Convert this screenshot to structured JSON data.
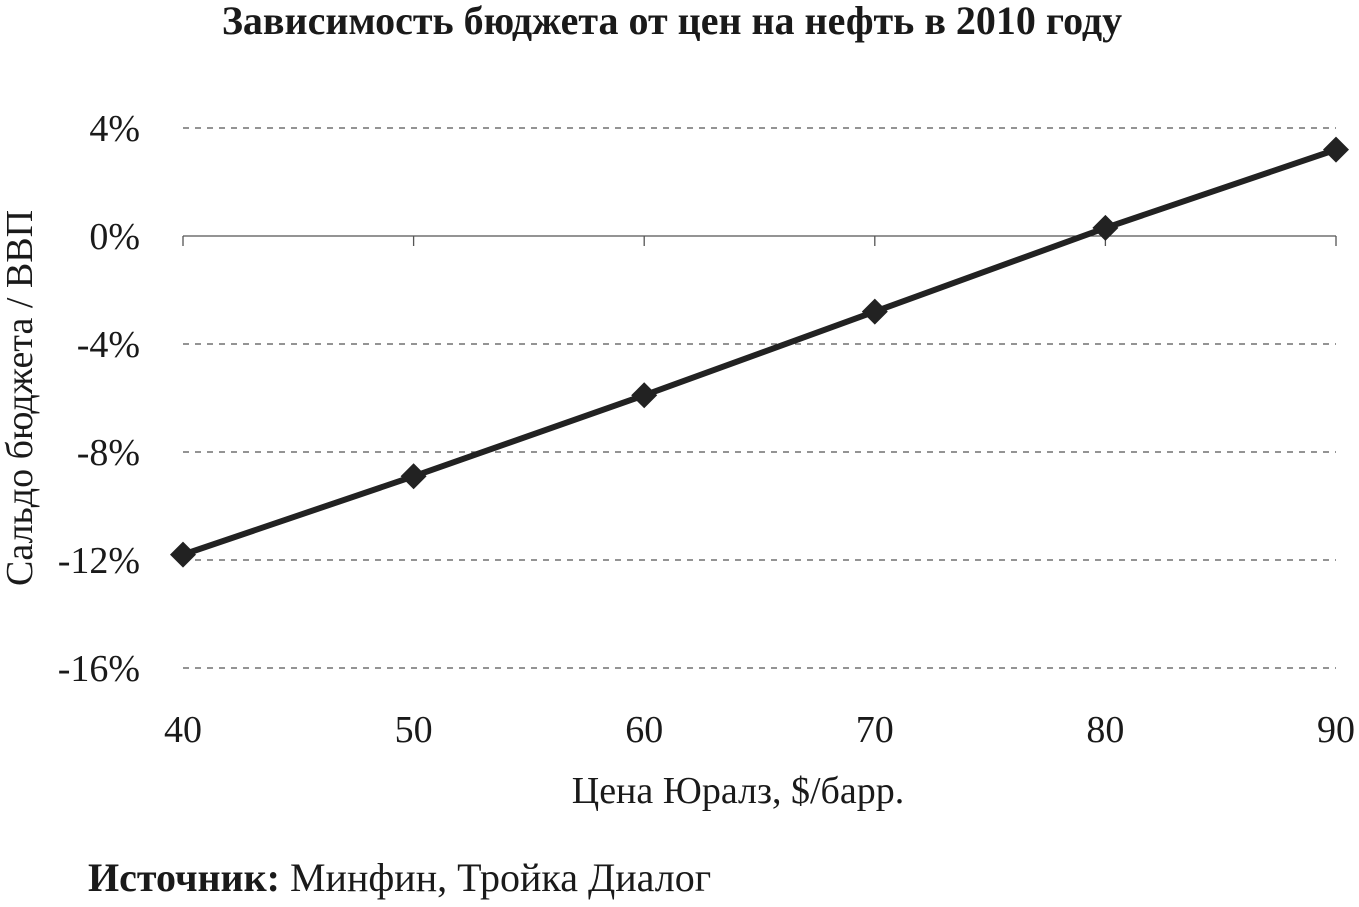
{
  "chart_data": {
    "type": "line",
    "title": "Зависимость бюджета от цен на нефть в 2010 году",
    "xlabel": "Цена Юралз, $/барр.",
    "ylabel": "Сальдо бюджета / ВВП",
    "x": [
      40,
      50,
      60,
      70,
      80,
      90
    ],
    "x_tick_labels": [
      "40",
      "50",
      "60",
      "70",
      "80",
      "90"
    ],
    "y_tick_values": [
      4,
      0,
      -4,
      -8,
      -12,
      -16
    ],
    "y_tick_labels": [
      "4%",
      "0%",
      "-4%",
      "-8%",
      "-12%",
      "-16%"
    ],
    "ylim": [
      -16,
      4
    ],
    "xlim": [
      40,
      90
    ],
    "grid": "horizontal dashed",
    "legend": "none",
    "series": [
      {
        "values": [
          -11.8,
          -8.9,
          -5.9,
          -2.8,
          0.3,
          3.2
        ],
        "color": "#222222",
        "marker": "diamond"
      }
    ]
  },
  "source": {
    "label": "Источник:",
    "text": "Минфин, Тройка Диалог"
  }
}
